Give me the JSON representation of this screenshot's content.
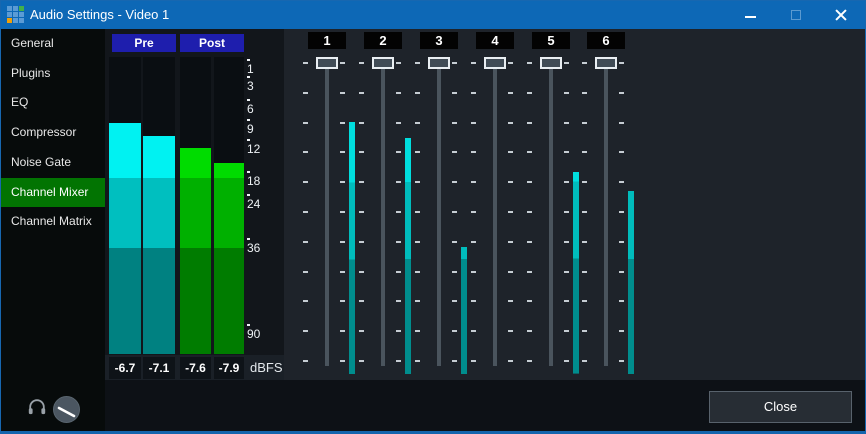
{
  "window": {
    "title": "Audio Settings - Video 1"
  },
  "sidebar": {
    "items": [
      {
        "label": "General",
        "selected": false
      },
      {
        "label": "Plugins",
        "selected": false
      },
      {
        "label": "EQ",
        "selected": false
      },
      {
        "label": "Compressor",
        "selected": false
      },
      {
        "label": "Noise Gate",
        "selected": false
      },
      {
        "label": "Channel Mixer",
        "selected": true
      },
      {
        "label": "Channel Matrix",
        "selected": false
      }
    ]
  },
  "master_meters": {
    "groups": [
      {
        "label": "Pre",
        "color_scheme": "cyan",
        "bars": [
          {
            "value_dbfs": "-6.7",
            "fill_pct": 77.8
          },
          {
            "value_dbfs": "-7.1",
            "fill_pct": 73.4
          }
        ]
      },
      {
        "label": "Post",
        "color_scheme": "green",
        "bars": [
          {
            "value_dbfs": "-7.6",
            "fill_pct": 69.4
          },
          {
            "value_dbfs": "-7.9",
            "fill_pct": 64.3
          }
        ]
      }
    ],
    "unit_label": "dBFS",
    "scale_ticks": [
      {
        "label": "1",
        "pct": 4.0
      },
      {
        "label": "3",
        "pct": 9.8
      },
      {
        "label": "6",
        "pct": 17.5
      },
      {
        "label": "9",
        "pct": 24.2
      },
      {
        "label": "12",
        "pct": 31.0
      },
      {
        "label": "18",
        "pct": 41.8
      },
      {
        "label": "24",
        "pct": 49.5
      },
      {
        "label": "36",
        "pct": 64.3
      },
      {
        "label": "90",
        "pct": 93.3
      }
    ]
  },
  "channel_mixer": {
    "channels": [
      {
        "number": "1",
        "slider_pct": 0,
        "meter_fill_pct": 79.6
      },
      {
        "number": "2",
        "slider_pct": 0,
        "meter_fill_pct": 74.5
      },
      {
        "number": "3",
        "slider_pct": 0,
        "meter_fill_pct": 40.1
      },
      {
        "number": "4",
        "slider_pct": 0,
        "meter_fill_pct": 0
      },
      {
        "number": "5",
        "slider_pct": 0,
        "meter_fill_pct": 63.6
      },
      {
        "number": "6",
        "slider_pct": 0,
        "meter_fill_pct": 57.8
      }
    ]
  },
  "footer": {
    "close_label": "Close"
  },
  "colors": {
    "titlebar_blue": "#0d68b6",
    "selected_item_green": "#027402",
    "meter_header_blue": "#1e1ead",
    "cyan_bright": "#00f2f2",
    "cyan_mid": "#00bfbf",
    "cyan_dark": "#008181",
    "green_bright": "#00dc00",
    "green_mid": "#00b000",
    "green_dark": "#007c00",
    "small_cyan_bright": "#00dede",
    "small_cyan_mid": "#00bcbc",
    "small_cyan_dark": "#008d8d"
  }
}
